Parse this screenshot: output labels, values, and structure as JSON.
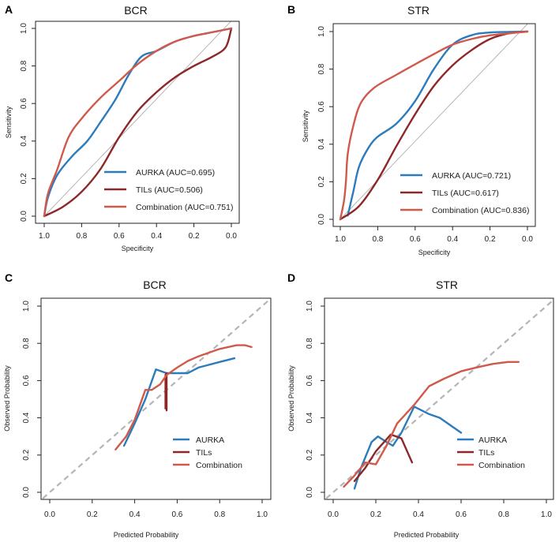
{
  "colors": {
    "AURKA": "#2b7bbd",
    "TILs": "#8e2727",
    "Combination": "#cf5a4c",
    "reference": "#b5b5b5"
  },
  "chart_data": [
    {
      "panel": "A",
      "title": "BCR",
      "type": "line",
      "xlabel": "Specificity",
      "ylabel": "Sensitivity",
      "xlim": [
        1.0,
        0.0
      ],
      "ylim": [
        0.0,
        1.0
      ],
      "xticks": [
        "1.0",
        "0.8",
        "0.6",
        "0.4",
        "0.2",
        "0.0"
      ],
      "yticks": [
        "0.0",
        "0.2",
        "0.4",
        "0.6",
        "0.8",
        "1.0"
      ],
      "reference": "diagonal-solid",
      "legend": "bottom-right",
      "series": [
        {
          "name": "AURKA",
          "label": "AURKA (AUC=0.695)",
          "points": [
            [
              1,
              0
            ],
            [
              0.98,
              0.1
            ],
            [
              0.93,
              0.22
            ],
            [
              0.85,
              0.32
            ],
            [
              0.77,
              0.4
            ],
            [
              0.7,
              0.5
            ],
            [
              0.62,
              0.62
            ],
            [
              0.55,
              0.75
            ],
            [
              0.48,
              0.85
            ],
            [
              0.4,
              0.88
            ],
            [
              0.3,
              0.93
            ],
            [
              0.2,
              0.96
            ],
            [
              0.1,
              0.98
            ],
            [
              0,
              1
            ]
          ]
        },
        {
          "name": "TILs",
          "label": "TILs (AUC=0.506)",
          "points": [
            [
              1,
              0
            ],
            [
              0.9,
              0.05
            ],
            [
              0.8,
              0.13
            ],
            [
              0.7,
              0.25
            ],
            [
              0.6,
              0.42
            ],
            [
              0.5,
              0.56
            ],
            [
              0.4,
              0.66
            ],
            [
              0.3,
              0.74
            ],
            [
              0.2,
              0.8
            ],
            [
              0.1,
              0.85
            ],
            [
              0.03,
              0.9
            ],
            [
              0,
              1
            ]
          ]
        },
        {
          "name": "Combination",
          "label": "Combination (AUC=0.751)",
          "points": [
            [
              1,
              0
            ],
            [
              0.98,
              0.12
            ],
            [
              0.93,
              0.25
            ],
            [
              0.87,
              0.42
            ],
            [
              0.8,
              0.52
            ],
            [
              0.7,
              0.63
            ],
            [
              0.6,
              0.72
            ],
            [
              0.5,
              0.81
            ],
            [
              0.4,
              0.88
            ],
            [
              0.3,
              0.93
            ],
            [
              0.2,
              0.96
            ],
            [
              0.1,
              0.98
            ],
            [
              0,
              1
            ]
          ]
        }
      ]
    },
    {
      "panel": "B",
      "title": "STR",
      "type": "line",
      "xlabel": "Specificity",
      "ylabel": "Sensitivity",
      "xlim": [
        1.0,
        0.0
      ],
      "ylim": [
        0.0,
        1.0
      ],
      "xticks": [
        "1.0",
        "0.8",
        "0.6",
        "0.4",
        "0.2",
        "0.0"
      ],
      "yticks": [
        "0.0",
        "0.2",
        "0.4",
        "0.6",
        "0.8",
        "1.0"
      ],
      "reference": "diagonal-solid",
      "legend": "bottom-right",
      "series": [
        {
          "name": "AURKA",
          "label": "AURKA (AUC=0.721)",
          "points": [
            [
              0.96,
              0.02
            ],
            [
              0.93,
              0.15
            ],
            [
              0.9,
              0.28
            ],
            [
              0.85,
              0.38
            ],
            [
              0.8,
              0.44
            ],
            [
              0.7,
              0.51
            ],
            [
              0.6,
              0.63
            ],
            [
              0.5,
              0.8
            ],
            [
              0.4,
              0.93
            ],
            [
              0.3,
              0.98
            ],
            [
              0.2,
              0.995
            ],
            [
              0,
              1
            ]
          ]
        },
        {
          "name": "TILs",
          "label": "TILs (AUC=0.617)",
          "points": [
            [
              1,
              0
            ],
            [
              0.9,
              0.07
            ],
            [
              0.8,
              0.21
            ],
            [
              0.7,
              0.39
            ],
            [
              0.6,
              0.56
            ],
            [
              0.5,
              0.71
            ],
            [
              0.4,
              0.82
            ],
            [
              0.3,
              0.9
            ],
            [
              0.2,
              0.96
            ],
            [
              0.1,
              0.99
            ],
            [
              0,
              1
            ]
          ]
        },
        {
          "name": "Combination",
          "label": "Combination (AUC=0.836)",
          "points": [
            [
              1,
              0
            ],
            [
              0.98,
              0.1
            ],
            [
              0.97,
              0.2
            ],
            [
              0.96,
              0.35
            ],
            [
              0.93,
              0.5
            ],
            [
              0.89,
              0.62
            ],
            [
              0.82,
              0.7
            ],
            [
              0.7,
              0.77
            ],
            [
              0.5,
              0.88
            ],
            [
              0.4,
              0.93
            ],
            [
              0.3,
              0.96
            ],
            [
              0.2,
              0.98
            ],
            [
              0,
              1
            ]
          ]
        }
      ]
    },
    {
      "panel": "C",
      "title": "BCR",
      "type": "line",
      "xlabel": "Predicted Probability",
      "ylabel": "Observed Probability",
      "xlim": [
        0.0,
        1.0
      ],
      "ylim": [
        0.0,
        1.0
      ],
      "xticks": [
        "0.0",
        "0.2",
        "0.4",
        "0.6",
        "0.8",
        "1.0"
      ],
      "yticks": [
        "0.0",
        "0.2",
        "0.4",
        "0.6",
        "0.8",
        "1.0"
      ],
      "reference": "diagonal-dashed",
      "legend": "bottom-right",
      "series": [
        {
          "name": "AURKA",
          "label": "AURKA",
          "points": [
            [
              0.35,
              0.25
            ],
            [
              0.4,
              0.37
            ],
            [
              0.45,
              0.5
            ],
            [
              0.5,
              0.66
            ],
            [
              0.55,
              0.64
            ],
            [
              0.6,
              0.64
            ],
            [
              0.65,
              0.64
            ],
            [
              0.7,
              0.67
            ],
            [
              0.8,
              0.7
            ],
            [
              0.87,
              0.72
            ]
          ]
        },
        {
          "name": "TILs",
          "label": "TILs",
          "points": [
            [
              0.545,
              0.45
            ],
            [
              0.545,
              0.63
            ],
            [
              0.55,
              0.64
            ],
            [
              0.55,
              0.44
            ]
          ]
        },
        {
          "name": "Combination",
          "label": "Combination",
          "points": [
            [
              0.31,
              0.23
            ],
            [
              0.36,
              0.3
            ],
            [
              0.4,
              0.39
            ],
            [
              0.45,
              0.55
            ],
            [
              0.48,
              0.55
            ],
            [
              0.52,
              0.58
            ],
            [
              0.55,
              0.63
            ],
            [
              0.6,
              0.67
            ],
            [
              0.65,
              0.705
            ],
            [
              0.7,
              0.73
            ],
            [
              0.8,
              0.77
            ],
            [
              0.88,
              0.79
            ],
            [
              0.92,
              0.79
            ],
            [
              0.95,
              0.78
            ]
          ]
        }
      ]
    },
    {
      "panel": "D",
      "title": "STR",
      "type": "line",
      "xlabel": "Predicted Probability",
      "ylabel": "Observed Probability",
      "xlim": [
        0.0,
        1.0
      ],
      "ylim": [
        0.0,
        1.0
      ],
      "xticks": [
        "0.0",
        "0.2",
        "0.4",
        "0.6",
        "0.8",
        "1.0"
      ],
      "yticks": [
        "0.0",
        "0.2",
        "0.4",
        "0.6",
        "0.8",
        "1.0"
      ],
      "reference": "diagonal-dashed",
      "legend": "bottom-right",
      "series": [
        {
          "name": "AURKA",
          "label": "AURKA",
          "points": [
            [
              0.1,
              0.02
            ],
            [
              0.13,
              0.13
            ],
            [
              0.18,
              0.27
            ],
            [
              0.21,
              0.3
            ],
            [
              0.25,
              0.27
            ],
            [
              0.28,
              0.25
            ],
            [
              0.32,
              0.32
            ],
            [
              0.38,
              0.46
            ],
            [
              0.45,
              0.42
            ],
            [
              0.5,
              0.4
            ],
            [
              0.6,
              0.32
            ]
          ]
        },
        {
          "name": "TILs",
          "label": "TILs",
          "points": [
            [
              0.1,
              0.06
            ],
            [
              0.15,
              0.13
            ],
            [
              0.2,
              0.22
            ],
            [
              0.27,
              0.31
            ],
            [
              0.32,
              0.29
            ],
            [
              0.37,
              0.16
            ]
          ]
        },
        {
          "name": "Combination",
          "label": "Combination",
          "points": [
            [
              0.05,
              0.03
            ],
            [
              0.1,
              0.09
            ],
            [
              0.15,
              0.16
            ],
            [
              0.2,
              0.15
            ],
            [
              0.25,
              0.25
            ],
            [
              0.3,
              0.37
            ],
            [
              0.38,
              0.47
            ],
            [
              0.45,
              0.57
            ],
            [
              0.52,
              0.61
            ],
            [
              0.6,
              0.65
            ],
            [
              0.67,
              0.67
            ],
            [
              0.75,
              0.69
            ],
            [
              0.82,
              0.7
            ],
            [
              0.87,
              0.7
            ]
          ]
        }
      ]
    }
  ]
}
